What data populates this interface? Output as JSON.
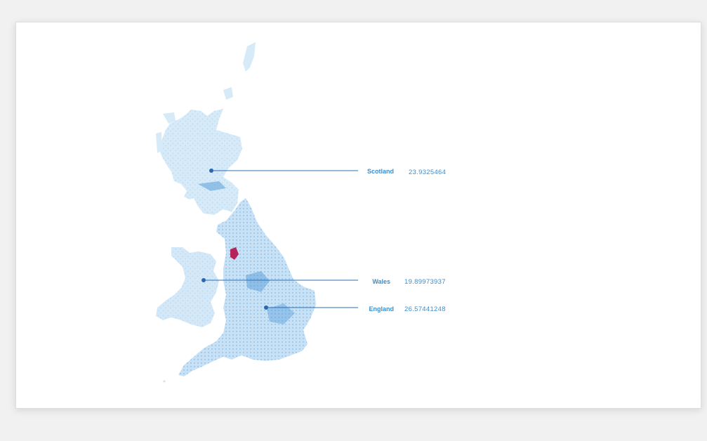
{
  "map": {
    "regions": [
      {
        "name": "Scotland",
        "value": "23.9325464",
        "color": "#d6eaf8"
      },
      {
        "name": "Wales",
        "value": "19.89973937",
        "color": "#d4e8f7"
      },
      {
        "name": "England",
        "value": "26.57441248",
        "color": "#c9e1f5"
      }
    ],
    "colors": {
      "line": "#2a6fb5",
      "dot": "#2d66b0",
      "label": "#3a8fcf",
      "hotspot": "#b4245b"
    }
  }
}
